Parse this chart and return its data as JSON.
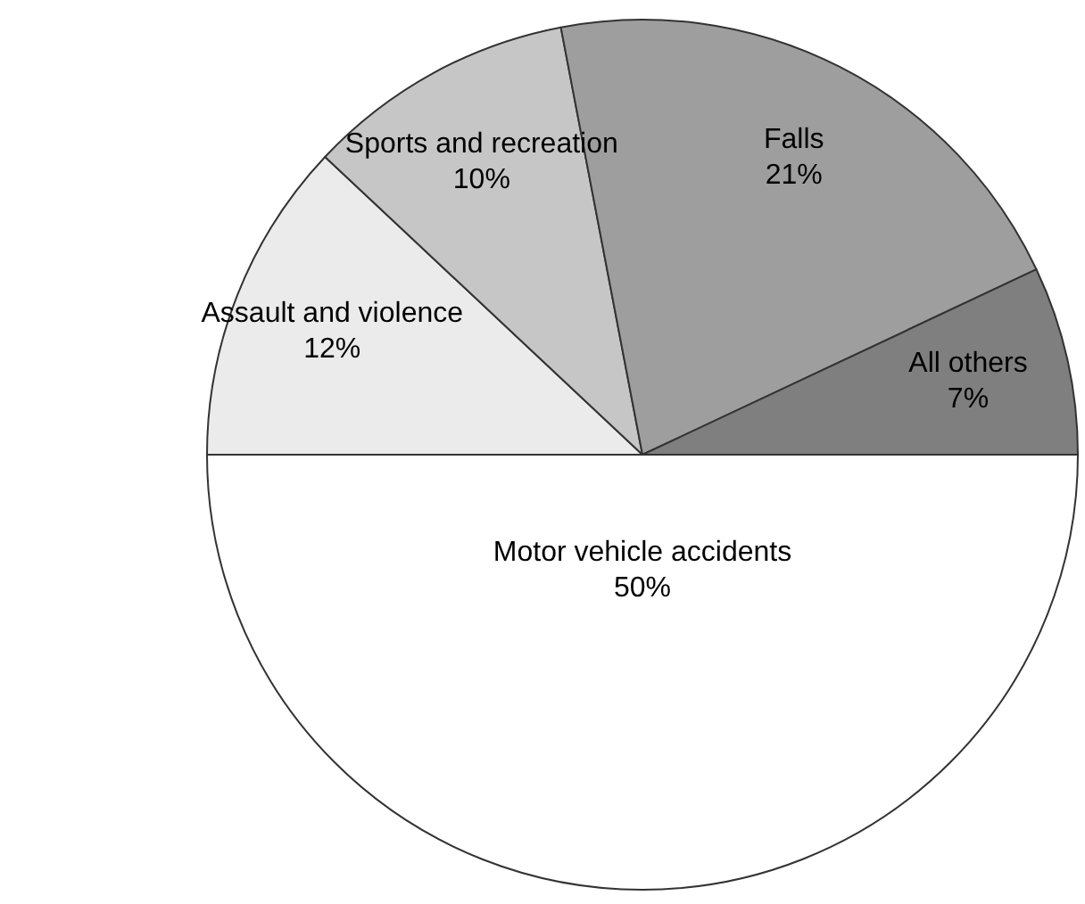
{
  "chart_data": {
    "type": "pie",
    "categories": [
      "Assault and violence",
      "Sports and recreation",
      "Falls",
      "All others",
      "Motor vehicle accidents"
    ],
    "values": [
      12,
      10,
      21,
      7,
      50
    ],
    "value_labels": [
      "12%",
      "10%",
      "21%",
      "7%",
      "50%"
    ],
    "colors": [
      "#ebebeb",
      "#c6c6c6",
      "#9e9e9e",
      "#7f7f7f",
      "#ffffff"
    ]
  }
}
